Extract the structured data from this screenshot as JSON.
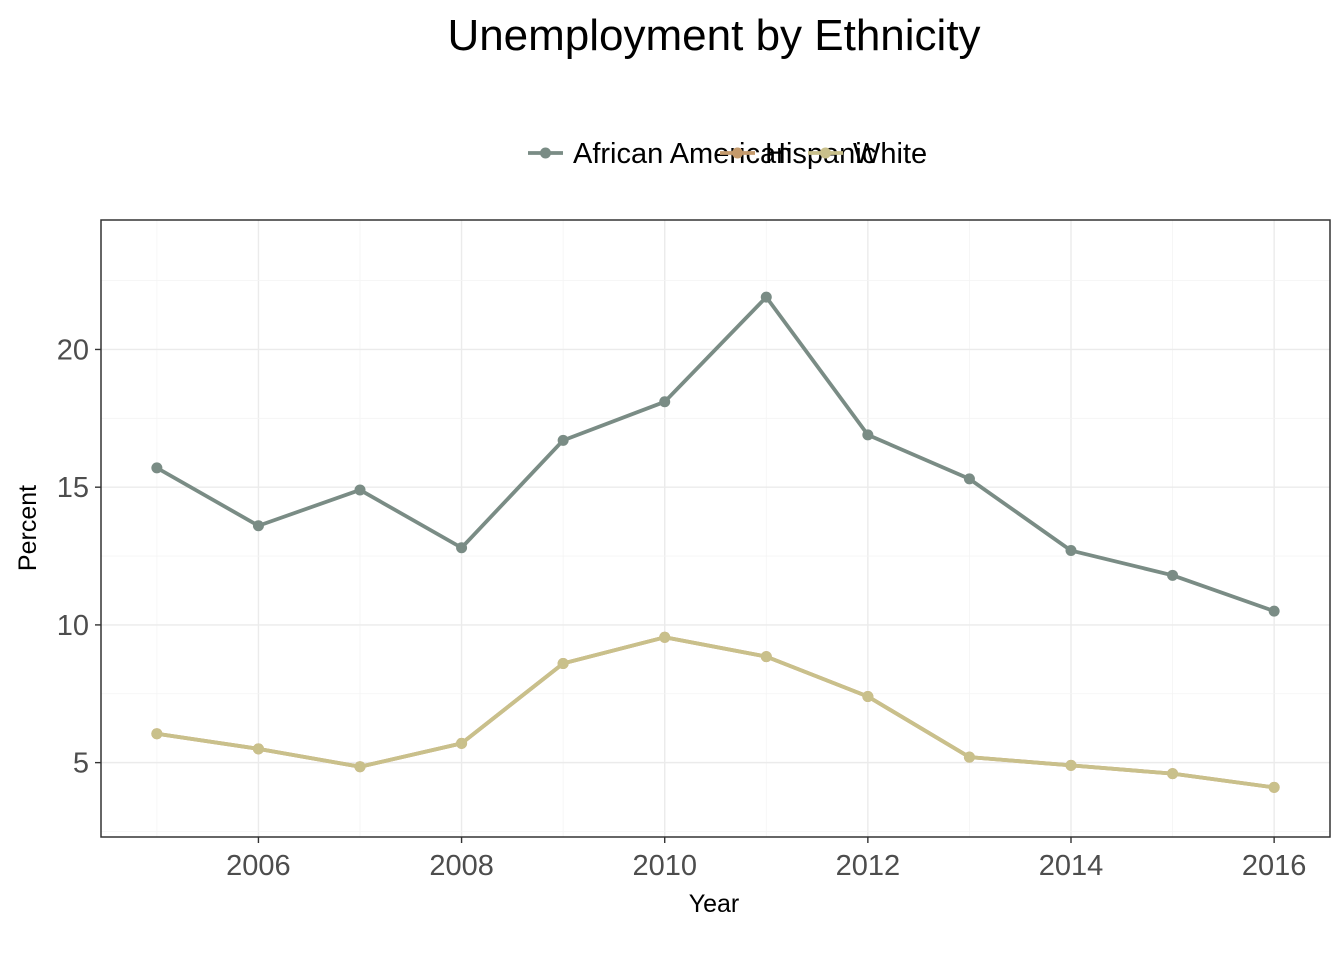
{
  "chart_data": {
    "type": "line",
    "title": "Unemployment by Ethnicity",
    "xlabel": "Year",
    "ylabel": "Percent",
    "x": [
      2005,
      2006,
      2007,
      2008,
      2009,
      2010,
      2011,
      2012,
      2013,
      2014,
      2015,
      2016
    ],
    "xlim": [
      2004.45,
      2016.55
    ],
    "ylim": [
      2.3,
      24.7
    ],
    "x_ticks": [
      2006,
      2008,
      2010,
      2012,
      2014,
      2016
    ],
    "y_ticks": [
      5,
      10,
      15,
      20
    ],
    "grid": true,
    "legend_position": "top",
    "series": [
      {
        "name": "African American",
        "color": "#7a8c85",
        "values": [
          15.7,
          13.6,
          14.9,
          12.8,
          16.7,
          18.1,
          21.9,
          16.9,
          15.3,
          12.7,
          11.8,
          10.5
        ]
      },
      {
        "name": "Hispanic",
        "color": "#c49a6c",
        "values": [
          6.05,
          5.5,
          4.85,
          5.7,
          8.6,
          9.55,
          8.85,
          7.4,
          5.2,
          4.9,
          4.6,
          4.1
        ]
      },
      {
        "name": "White",
        "color": "#c9c08b",
        "values": [
          6.05,
          5.5,
          4.85,
          5.7,
          8.6,
          9.55,
          8.85,
          7.4,
          5.2,
          4.9,
          4.6,
          4.1
        ]
      }
    ]
  }
}
